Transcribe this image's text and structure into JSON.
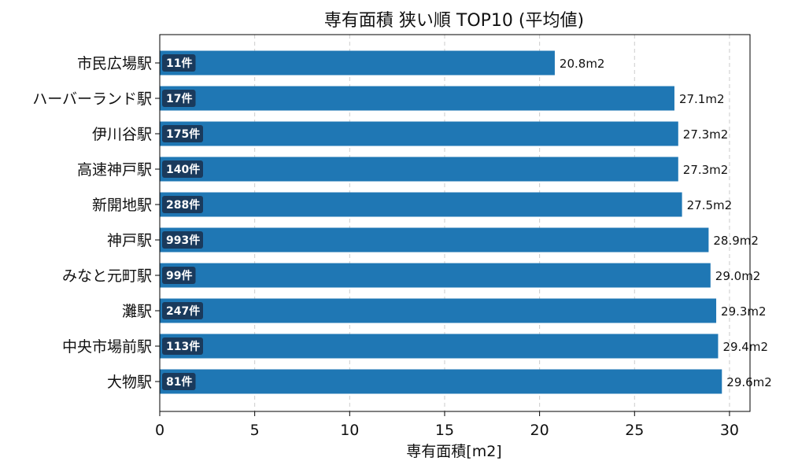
{
  "chart_data": {
    "type": "bar",
    "orientation": "horizontal",
    "title": "専有面積 狭い順 TOP10 (平均値)",
    "xlabel": "専有面積[m2]",
    "ylabel": "",
    "xlim": [
      0,
      31.08
    ],
    "xticks": [
      0,
      5,
      10,
      15,
      20,
      25,
      30
    ],
    "grid": "x-dashed",
    "categories": [
      "市民広場駅",
      "ハーバーランド駅",
      "伊川谷駅",
      "高速神戸駅",
      "新開地駅",
      "神戸駅",
      "みなと元町駅",
      "灘駅",
      "中央市場前駅",
      "大物駅"
    ],
    "values": [
      20.8,
      27.1,
      27.3,
      27.3,
      27.5,
      28.9,
      29.0,
      29.3,
      29.4,
      29.6
    ],
    "value_labels": [
      "20.8m2",
      "27.1m2",
      "27.3m2",
      "27.3m2",
      "27.5m2",
      "28.9m2",
      "29.0m2",
      "29.3m2",
      "29.4m2",
      "29.6m2"
    ],
    "count_labels": [
      "11件",
      "17件",
      "175件",
      "140件",
      "288件",
      "993件",
      "99件",
      "247件",
      "113件",
      "81件"
    ],
    "bar_color": "#1f77b4",
    "count_badge_color": "#1a3a5c"
  }
}
